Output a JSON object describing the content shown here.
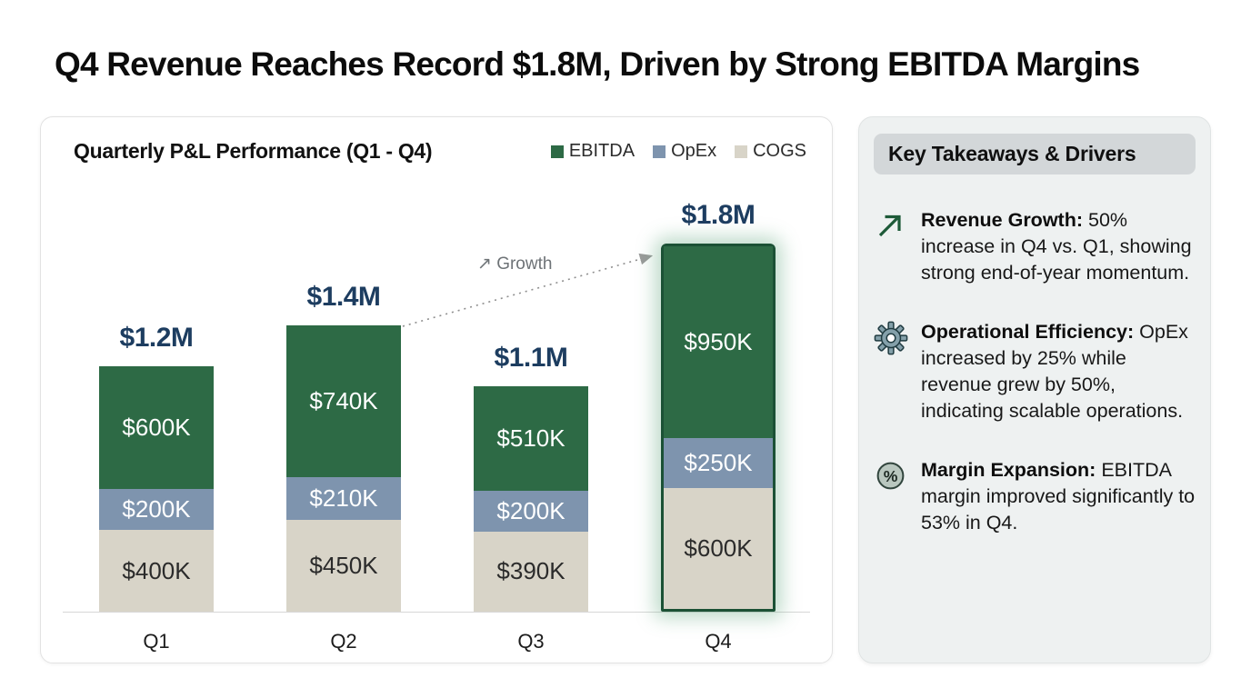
{
  "page": {
    "title": "Q4 Revenue Reaches Record $1.8M, Driven by Strong EBITDA Margins"
  },
  "chart_data": {
    "type": "bar",
    "variant": "stacked",
    "title": "Quarterly P&L Performance (Q1 - Q4)",
    "categories": [
      "Q1",
      "Q2",
      "Q3",
      "Q4"
    ],
    "unit_hint": "values shown in USD thousands (K) per segment",
    "series": [
      {
        "name": "COGS",
        "color": "#d8d4c8",
        "label_color": "#2b2b2b",
        "values": [
          400,
          450,
          390,
          600
        ],
        "labels": [
          "$400K",
          "$450K",
          "$390K",
          "$600K"
        ]
      },
      {
        "name": "OpEx",
        "color": "#7e94ae",
        "label_color": "#ffffff",
        "values": [
          200,
          210,
          200,
          250
        ],
        "labels": [
          "$200K",
          "$210K",
          "$200K",
          "$250K"
        ]
      },
      {
        "name": "EBITDA",
        "color": "#2d6a45",
        "label_color": "#ffffff",
        "values": [
          600,
          740,
          510,
          950
        ],
        "labels": [
          "$600K",
          "$740K",
          "$510K",
          "$950K"
        ]
      }
    ],
    "totals": [
      "$1.2M",
      "$1.4M",
      "$1.1M",
      "$1.8M"
    ],
    "totals_values_musd": [
      1.2,
      1.4,
      1.1,
      1.8
    ],
    "legend": [
      {
        "label": "EBITDA",
        "color": "#2d6a45"
      },
      {
        "label": "OpEx",
        "color": "#7e94ae"
      },
      {
        "label": "COGS",
        "color": "#d8d4c8"
      }
    ],
    "legend_position": "top-right",
    "grid": false,
    "xlabel": "",
    "ylabel": "",
    "highlight_category": "Q4",
    "annotation": {
      "label": "↗ Growth",
      "from_category": "Q2",
      "to_category": "Q4",
      "style": "dotted-arrow"
    }
  },
  "takeaways": {
    "header": "Key Takeaways & Drivers",
    "items": [
      {
        "icon": "trend-up-arrow-icon",
        "title": "Revenue Growth:",
        "text": "50% increase in Q4 vs. Q1, showing strong end-of-year momentum."
      },
      {
        "icon": "gear-icon",
        "title": "Operational Efficiency:",
        "text": "OpEx increased by 25% while revenue grew by 50%, indicating scalable operations."
      },
      {
        "icon": "percent-circle-icon",
        "title": "Margin Expansion:",
        "text": "EBITDA margin improved significantly to 53% in Q4."
      }
    ]
  },
  "colors": {
    "ebitda_green": "#2d6a45",
    "opex_blue": "#7e94ae",
    "cogs_beige": "#d8d4c8",
    "total_navy": "#1d3d60",
    "highlight_border": "#1b5135",
    "panel_bg": "#eef1f1",
    "chip_bg": "#d3d7d9",
    "annotation_gray": "#6e7377"
  }
}
